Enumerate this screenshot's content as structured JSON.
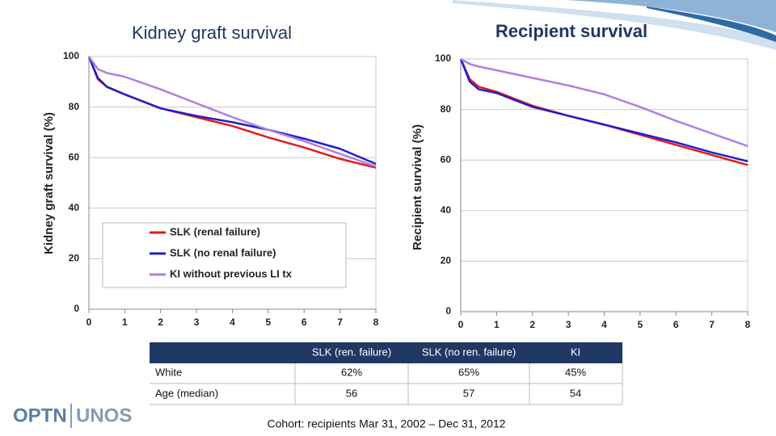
{
  "chart_data": [
    {
      "type": "line",
      "title": "Kidney graft survival",
      "y_label": "Kidney graft survival (%)",
      "x": [
        0,
        0.25,
        0.5,
        1,
        2,
        3,
        4,
        5,
        6,
        7,
        8
      ],
      "xlim": [
        0,
        8
      ],
      "xticks": [
        0,
        1,
        2,
        3,
        4,
        5,
        6,
        7,
        8
      ],
      "ylim": [
        0,
        100
      ],
      "yticks": [
        0,
        20,
        40,
        60,
        80,
        100
      ],
      "grid": true,
      "legend": "lower left",
      "series": [
        {
          "name": "SLK (renal failure)",
          "color": "#e31a1c",
          "values": [
            100,
            91,
            88,
            85,
            79.5,
            76,
            72.5,
            68,
            64,
            59.5,
            56
          ]
        },
        {
          "name": "SLK (no renal failure)",
          "color": "#2020c8",
          "values": [
            100,
            91.5,
            88,
            85,
            79.5,
            76.5,
            74,
            71,
            67.5,
            63.5,
            57.5
          ]
        },
        {
          "name": "KI without previous LI tx",
          "color": "#b07fe0",
          "values": [
            100,
            95,
            93.5,
            92,
            87,
            81.5,
            76,
            71,
            66.5,
            61.5,
            56.5
          ]
        }
      ]
    },
    {
      "type": "line",
      "title": "Recipient survival",
      "y_label": "Recipient survival (%)",
      "x": [
        0,
        0.25,
        0.5,
        1,
        2,
        3,
        4,
        5,
        6,
        7,
        8
      ],
      "xlim": [
        0,
        8
      ],
      "xticks": [
        0,
        1,
        2,
        3,
        4,
        5,
        6,
        7,
        8
      ],
      "ylim": [
        0,
        100
      ],
      "yticks": [
        0,
        20,
        40,
        60,
        80,
        100
      ],
      "grid": true,
      "series": [
        {
          "color": "#e31a1c",
          "values": [
            100,
            92,
            89,
            87,
            81.5,
            77.5,
            74,
            70,
            66,
            62,
            58
          ]
        },
        {
          "color": "#2020c8",
          "values": [
            100,
            91,
            88,
            86.5,
            81,
            77.5,
            74,
            70.5,
            67,
            63,
            59.5
          ]
        },
        {
          "color": "#b07fe0",
          "values": [
            100,
            98,
            97,
            95.5,
            92.5,
            89.5,
            86,
            81,
            75.5,
            70.5,
            65.5
          ]
        }
      ]
    }
  ],
  "table": {
    "columns": [
      "SLK (ren. failure)",
      "SLK (no ren. failure)",
      "KI"
    ],
    "rows": [
      {
        "label": "White",
        "cells": [
          "62%",
          "65%",
          "45%"
        ]
      },
      {
        "label": "Age (median)",
        "cells": [
          "56",
          "57",
          "54"
        ]
      }
    ]
  },
  "footnote": "Cohort: recipients Mar 31, 2002 – Dec 31, 2012",
  "logo": {
    "left": "OPTN",
    "right": "UNOS"
  }
}
